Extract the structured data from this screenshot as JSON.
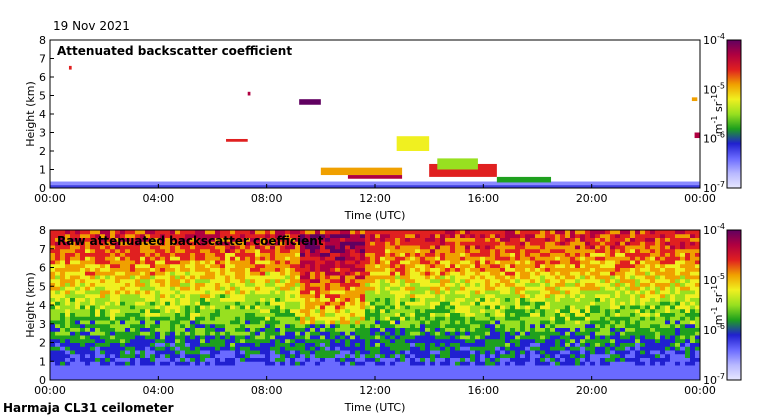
{
  "header": {
    "date": "19 Nov 2021"
  },
  "footer": {
    "instrument": "Harmaja CL31 ceilometer"
  },
  "colors": {
    "bg": "#ffffff",
    "axis": "#000000",
    "cmap": [
      "#e8e8ff",
      "#b8b8ff",
      "#6a6aff",
      "#2020d0",
      "#1ea01e",
      "#98e020",
      "#f0f020",
      "#f0a000",
      "#e02020",
      "#b00040",
      "#600060"
    ]
  },
  "chart_data": [
    {
      "type": "heatmap",
      "title": "Attenuated backscatter coefficient",
      "xlabel": "Time (UTC)",
      "ylabel": "Height (km)",
      "xticks": [
        "00:00",
        "04:00",
        "08:00",
        "12:00",
        "16:00",
        "20:00",
        "00:00"
      ],
      "yticks": [
        "0",
        "1",
        "2",
        "3",
        "4",
        "5",
        "6",
        "7",
        "8"
      ],
      "xlim": [
        0,
        24
      ],
      "ylim": [
        0,
        8
      ],
      "colorbar": {
        "ticks": [
          "10",
          "10",
          "10",
          "10"
        ],
        "exponents": [
          "-4",
          "-5",
          "-6",
          "-7"
        ],
        "label": "m",
        "label_exp1": "-1",
        "label_mid": " sr",
        "label_exp2": "-1",
        "scale": "log",
        "range": [
          1e-07,
          0.0001
        ]
      }
    },
    {
      "type": "heatmap",
      "title": "Raw attenuated backscatter coefficient",
      "xlabel": "Time (UTC)",
      "ylabel": "Height (km)",
      "xticks": [
        "00:00",
        "04:00",
        "08:00",
        "12:00",
        "16:00",
        "20:00",
        "00:00"
      ],
      "yticks": [
        "0",
        "1",
        "2",
        "3",
        "4",
        "5",
        "6",
        "7",
        "8"
      ],
      "xlim": [
        0,
        24
      ],
      "ylim": [
        0,
        8
      ],
      "colorbar": {
        "ticks": [
          "10",
          "10",
          "10",
          "10"
        ],
        "exponents": [
          "-4",
          "-5",
          "-6",
          "-7"
        ],
        "label": "m",
        "label_exp1": "-1",
        "label_mid": " sr",
        "label_exp2": "-1",
        "scale": "log",
        "range": [
          1e-07,
          0.0001
        ]
      }
    }
  ]
}
